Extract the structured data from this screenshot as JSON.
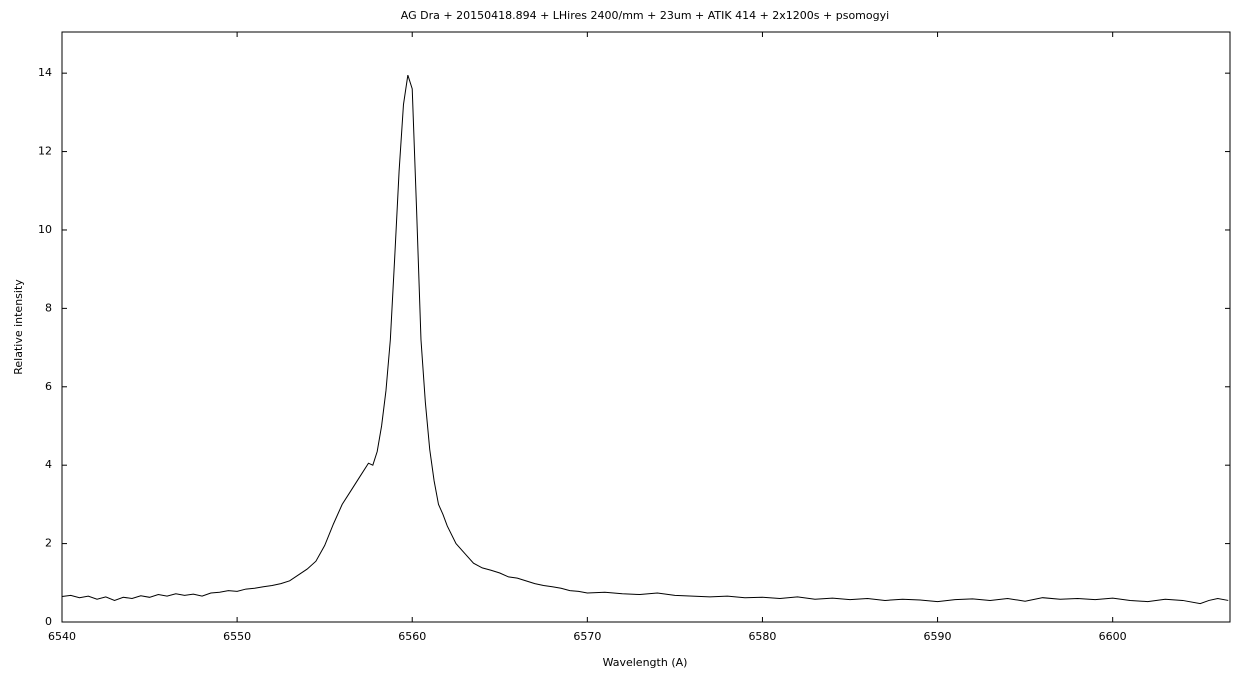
{
  "chart_data": {
    "type": "line",
    "title": "AG Dra + 20150418.894 + LHires 2400/mm + 23um + ATIK 414 + 2x1200s + psomogyi",
    "x_label": "Wavelength (A)",
    "y_label": "Relative intensity",
    "xlim": [
      6540,
      6606.7
    ],
    "ylim": [
      0,
      15.05
    ],
    "xticks": [
      6540,
      6550,
      6560,
      6570,
      6580,
      6590,
      6600
    ],
    "yticks": [
      0,
      2,
      4,
      6,
      8,
      10,
      12,
      14
    ],
    "grid": false,
    "series": [
      {
        "color": "#000000",
        "x": [
          6540,
          6540.5,
          6541,
          6541.5,
          6542,
          6542.5,
          6543,
          6543.5,
          6544,
          6544.5,
          6545,
          6545.5,
          6546,
          6546.5,
          6547,
          6547.5,
          6548,
          6548.5,
          6549,
          6549.5,
          6550,
          6550.5,
          6551,
          6551.5,
          6552,
          6552.5,
          6553,
          6553.5,
          6554,
          6554.5,
          6555,
          6555.5,
          6556,
          6556.5,
          6557,
          6557.5,
          6557.75,
          6558,
          6558.25,
          6558.5,
          6558.75,
          6559,
          6559.25,
          6559.5,
          6559.75,
          6560,
          6560.25,
          6560.5,
          6560.75,
          6561,
          6561.25,
          6561.5,
          6561.75,
          6562,
          6562.5,
          6563,
          6563.5,
          6564,
          6564.5,
          6565,
          6565.5,
          6566,
          6566.5,
          6567,
          6567.5,
          6568,
          6568.5,
          6569,
          6569.5,
          6570,
          6571,
          6572,
          6573,
          6574,
          6575,
          6576,
          6577,
          6578,
          6579,
          6580,
          6581,
          6582,
          6583,
          6584,
          6585,
          6586,
          6587,
          6588,
          6589,
          6590,
          6591,
          6592,
          6593,
          6594,
          6595,
          6596,
          6597,
          6598,
          6599,
          6600,
          6601,
          6602,
          6603,
          6604,
          6605,
          6605.5,
          6606,
          6606.6
        ],
        "values": [
          0.65,
          0.68,
          0.62,
          0.66,
          0.58,
          0.64,
          0.55,
          0.63,
          0.6,
          0.67,
          0.63,
          0.7,
          0.66,
          0.72,
          0.68,
          0.71,
          0.66,
          0.74,
          0.76,
          0.8,
          0.78,
          0.84,
          0.86,
          0.9,
          0.93,
          0.98,
          1.05,
          1.2,
          1.35,
          1.55,
          1.95,
          2.5,
          3.0,
          3.35,
          3.7,
          4.05,
          4.0,
          4.35,
          5.0,
          5.9,
          7.2,
          9.3,
          11.5,
          13.2,
          13.95,
          13.6,
          10.5,
          7.2,
          5.6,
          4.4,
          3.6,
          3.0,
          2.75,
          2.45,
          2.0,
          1.75,
          1.5,
          1.38,
          1.32,
          1.25,
          1.15,
          1.12,
          1.05,
          0.98,
          0.93,
          0.9,
          0.86,
          0.8,
          0.78,
          0.74,
          0.76,
          0.72,
          0.7,
          0.74,
          0.68,
          0.66,
          0.64,
          0.66,
          0.62,
          0.63,
          0.6,
          0.64,
          0.58,
          0.61,
          0.57,
          0.6,
          0.55,
          0.58,
          0.56,
          0.52,
          0.57,
          0.59,
          0.55,
          0.6,
          0.53,
          0.62,
          0.58,
          0.6,
          0.57,
          0.61,
          0.55,
          0.52,
          0.58,
          0.55,
          0.47,
          0.55,
          0.6,
          0.55
        ]
      }
    ]
  }
}
